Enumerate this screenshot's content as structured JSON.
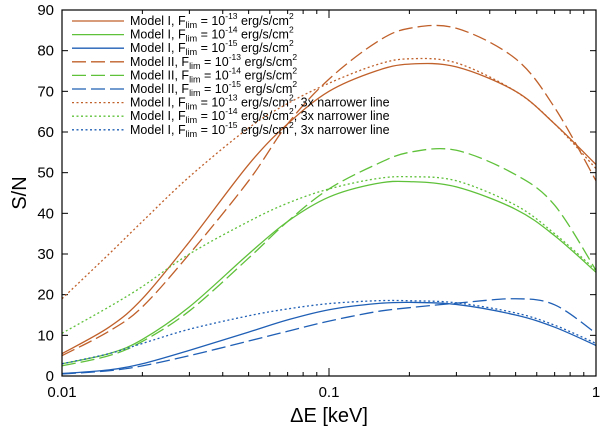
{
  "chart_data": {
    "type": "line",
    "title": "",
    "xlabel": "ΔE [keV]",
    "ylabel": "S/N",
    "xscale": "log",
    "xlim": [
      0.01,
      1
    ],
    "ylim": [
      0,
      90
    ],
    "x_ticks": [
      {
        "value": 0.01,
        "label": "0.01"
      },
      {
        "value": 0.1,
        "label": "0.1"
      },
      {
        "value": 1,
        "label": "1"
      }
    ],
    "y_ticks": [
      0,
      10,
      20,
      30,
      40,
      50,
      60,
      70,
      80,
      90
    ],
    "legend_position": "top-left",
    "colors": {
      "orange": "#c0602a",
      "green": "#5fc13a",
      "blue": "#1f5fb5"
    },
    "series": [
      {
        "name": "Model I, Flim = 10^-13 erg/s/cm^2",
        "model": "Model I",
        "flux_exp": "-13",
        "suffix": "",
        "color": "orange",
        "dash": "solid",
        "x": [
          0.01,
          0.015,
          0.02,
          0.03,
          0.05,
          0.07,
          0.1,
          0.15,
          0.2,
          0.3,
          0.5,
          0.7,
          1.0
        ],
        "y": [
          5.5,
          12,
          19,
          33,
          52,
          62,
          70,
          75,
          76.7,
          76,
          70,
          62,
          52
        ]
      },
      {
        "name": "Model I, Flim = 10^-14 erg/s/cm^2",
        "model": "Model I",
        "flux_exp": "-14",
        "suffix": "",
        "color": "green",
        "dash": "solid",
        "x": [
          0.01,
          0.015,
          0.02,
          0.03,
          0.05,
          0.07,
          0.1,
          0.15,
          0.2,
          0.3,
          0.5,
          0.7,
          1.0
        ],
        "y": [
          3,
          5.5,
          9,
          17,
          30,
          38,
          44,
          47.3,
          47.8,
          46.5,
          41,
          34.5,
          25.5
        ]
      },
      {
        "name": "Model I, Flim = 10^-15 erg/s/cm^2",
        "model": "Model I",
        "flux_exp": "-15",
        "suffix": "",
        "color": "blue",
        "dash": "solid",
        "x": [
          0.01,
          0.015,
          0.02,
          0.03,
          0.05,
          0.07,
          0.1,
          0.15,
          0.2,
          0.3,
          0.5,
          0.7,
          1.0
        ],
        "y": [
          0.6,
          1.5,
          3,
          6.3,
          10.8,
          13.8,
          16.3,
          17.8,
          18.1,
          17.6,
          15,
          12,
          7.5
        ]
      },
      {
        "name": "Model II, Flim = 10^-13 erg/s/cm^2",
        "model": "Model II",
        "flux_exp": "-13",
        "suffix": "",
        "color": "orange",
        "dash": "long",
        "x": [
          0.01,
          0.015,
          0.02,
          0.03,
          0.05,
          0.07,
          0.1,
          0.15,
          0.2,
          0.3,
          0.5,
          0.7,
          1.0
        ],
        "y": [
          5,
          11,
          17,
          30,
          48,
          62,
          73,
          82,
          85.5,
          85.5,
          78,
          66,
          48
        ]
      },
      {
        "name": "Model II, Flim = 10^-14 erg/s/cm^2",
        "model": "Model II",
        "flux_exp": "-14",
        "suffix": "",
        "color": "green",
        "dash": "long",
        "x": [
          0.01,
          0.015,
          0.02,
          0.03,
          0.05,
          0.07,
          0.1,
          0.15,
          0.2,
          0.3,
          0.5,
          0.7,
          1.0
        ],
        "y": [
          2.5,
          5,
          8.5,
          16,
          29,
          38,
          46,
          52,
          55,
          55.5,
          49.5,
          42,
          26
        ]
      },
      {
        "name": "Model II, Flim = 10^-15 erg/s/cm^2",
        "model": "Model II",
        "flux_exp": "-15",
        "suffix": "",
        "color": "blue",
        "dash": "long",
        "x": [
          0.01,
          0.015,
          0.02,
          0.03,
          0.05,
          0.07,
          0.1,
          0.15,
          0.2,
          0.3,
          0.5,
          0.7,
          1.0
        ],
        "y": [
          0.5,
          1.3,
          2.5,
          5,
          8.6,
          11,
          13.5,
          15.8,
          16.8,
          17.9,
          19,
          17.5,
          10.5
        ]
      },
      {
        "name": "Model I, Flim = 10^-13 erg/s/cm^2, 3x narrower line",
        "model": "Model I",
        "flux_exp": "-13",
        "suffix": ", 3x narrower line",
        "color": "orange",
        "dash": "dot",
        "x": [
          0.01,
          0.015,
          0.02,
          0.03,
          0.05,
          0.07,
          0.1,
          0.15,
          0.2,
          0.3,
          0.5,
          0.7,
          1.0
        ],
        "y": [
          19,
          30,
          38,
          49,
          61,
          67,
          72,
          76.5,
          78,
          77,
          70,
          62,
          51
        ]
      },
      {
        "name": "Model I, Flim = 10^-14 erg/s/cm^2, 3x narrower line",
        "model": "Model I",
        "flux_exp": "-14",
        "suffix": ", 3x narrower line",
        "color": "green",
        "dash": "dot",
        "x": [
          0.01,
          0.015,
          0.02,
          0.03,
          0.05,
          0.07,
          0.1,
          0.15,
          0.2,
          0.3,
          0.5,
          0.7,
          1.0
        ],
        "y": [
          10.5,
          17,
          22,
          30,
          38,
          42.5,
          46,
          48.5,
          49,
          48,
          42,
          35,
          26
        ]
      },
      {
        "name": "Model I, Flim = 10^-15 erg/s/cm^2, 3x narrower line",
        "model": "Model I",
        "flux_exp": "-15",
        "suffix": ", 3x narrower line",
        "color": "blue",
        "dash": "dot",
        "x": [
          0.01,
          0.015,
          0.02,
          0.03,
          0.05,
          0.07,
          0.1,
          0.15,
          0.2,
          0.3,
          0.5,
          0.7,
          1.0
        ],
        "y": [
          3,
          5.5,
          8,
          11.5,
          14.8,
          16.5,
          17.8,
          18.5,
          18.5,
          18,
          15.5,
          12.5,
          8
        ]
      }
    ]
  }
}
